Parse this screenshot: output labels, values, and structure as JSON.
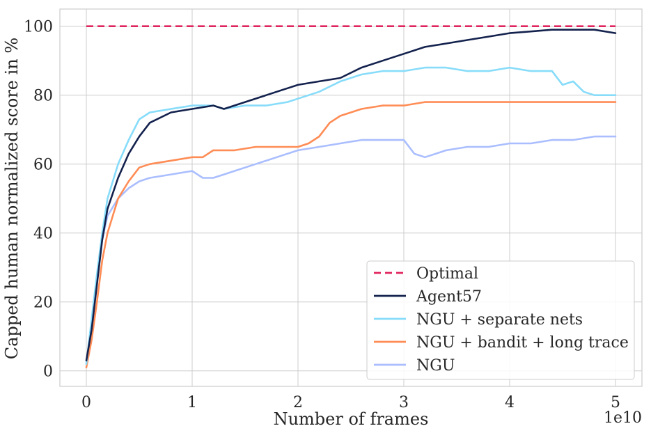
{
  "chart_data": {
    "type": "line",
    "title": "",
    "xlabel": "Number of  frames",
    "ylabel": "Capped human normalized score in %",
    "x_scale_label": "1e10",
    "xlim": [
      -0.25,
      5.25
    ],
    "ylim": [
      -4.5,
      105
    ],
    "x_ticks": [
      0,
      1,
      2,
      3,
      4,
      5
    ],
    "x_tick_labels": [
      "0",
      "1",
      "2",
      "3",
      "4",
      "5"
    ],
    "y_ticks": [
      0,
      20,
      40,
      60,
      80,
      100
    ],
    "y_tick_labels": [
      "0",
      "20",
      "40",
      "60",
      "80",
      "100"
    ],
    "grid": true,
    "legend_position": "lower-right",
    "series": [
      {
        "name": "Optimal",
        "color": "#e0245e",
        "dashed": true,
        "x": [
          0,
          5
        ],
        "y": [
          100,
          100
        ]
      },
      {
        "name": "Agent57",
        "color": "#13214d",
        "x": [
          0,
          0.05,
          0.1,
          0.15,
          0.2,
          0.3,
          0.4,
          0.5,
          0.6,
          0.8,
          1.0,
          1.2,
          1.3,
          1.5,
          1.7,
          1.9,
          2.0,
          2.2,
          2.4,
          2.6,
          2.8,
          3.0,
          3.2,
          3.4,
          3.6,
          3.8,
          4.0,
          4.2,
          4.4,
          4.6,
          4.8,
          5.0
        ],
        "y": [
          3,
          12,
          25,
          38,
          47,
          56,
          63,
          68,
          72,
          75,
          76,
          77,
          76,
          78,
          80,
          82,
          83,
          84,
          85,
          88,
          90,
          92,
          94,
          95,
          96,
          97,
          98,
          98.5,
          99,
          99,
          99,
          98
        ]
      },
      {
        "name": "NGU + separate nets",
        "color": "#87dcfa",
        "x": [
          0,
          0.05,
          0.1,
          0.15,
          0.2,
          0.3,
          0.4,
          0.5,
          0.6,
          0.8,
          1.0,
          1.2,
          1.3,
          1.5,
          1.7,
          1.9,
          2.0,
          2.2,
          2.4,
          2.6,
          2.8,
          3.0,
          3.2,
          3.4,
          3.6,
          3.8,
          4.0,
          4.2,
          4.4,
          4.5,
          4.6,
          4.7,
          4.8,
          5.0
        ],
        "y": [
          2,
          15,
          28,
          40,
          50,
          60,
          67,
          73,
          75,
          76,
          77,
          77,
          76,
          77,
          77,
          78,
          79,
          81,
          84,
          86,
          87,
          87,
          88,
          88,
          87,
          87,
          88,
          87,
          87,
          83,
          84,
          81,
          80,
          80
        ]
      },
      {
        "name": "NGU + bandit + long trace",
        "color": "#ff8c55",
        "x": [
          0,
          0.05,
          0.1,
          0.15,
          0.2,
          0.3,
          0.4,
          0.5,
          0.6,
          0.8,
          1.0,
          1.1,
          1.2,
          1.4,
          1.6,
          1.8,
          2.0,
          2.1,
          2.2,
          2.3,
          2.4,
          2.6,
          2.8,
          3.0,
          3.2,
          3.4,
          3.6,
          3.8,
          4.0,
          4.2,
          4.4,
          4.6,
          4.8,
          5.0
        ],
        "y": [
          1,
          9,
          20,
          32,
          40,
          50,
          55,
          59,
          60,
          61,
          62,
          62,
          64,
          64,
          65,
          65,
          65,
          66,
          68,
          72,
          74,
          76,
          77,
          77,
          78,
          78,
          78,
          78,
          78,
          78,
          78,
          78,
          78,
          78
        ]
      },
      {
        "name": "NGU",
        "color": "#aabeff",
        "x": [
          0,
          0.05,
          0.1,
          0.15,
          0.2,
          0.3,
          0.4,
          0.5,
          0.6,
          0.8,
          1.0,
          1.1,
          1.2,
          1.3,
          1.4,
          1.6,
          1.8,
          2.0,
          2.2,
          2.4,
          2.6,
          2.8,
          3.0,
          3.1,
          3.2,
          3.4,
          3.6,
          3.8,
          4.0,
          4.2,
          4.4,
          4.6,
          4.8,
          5.0
        ],
        "y": [
          2,
          14,
          27,
          38,
          45,
          50,
          53,
          55,
          56,
          57,
          58,
          56,
          56,
          57,
          58,
          60,
          62,
          64,
          65,
          66,
          67,
          67,
          67,
          63,
          62,
          64,
          65,
          65,
          66,
          66,
          67,
          67,
          68,
          68
        ]
      }
    ]
  }
}
